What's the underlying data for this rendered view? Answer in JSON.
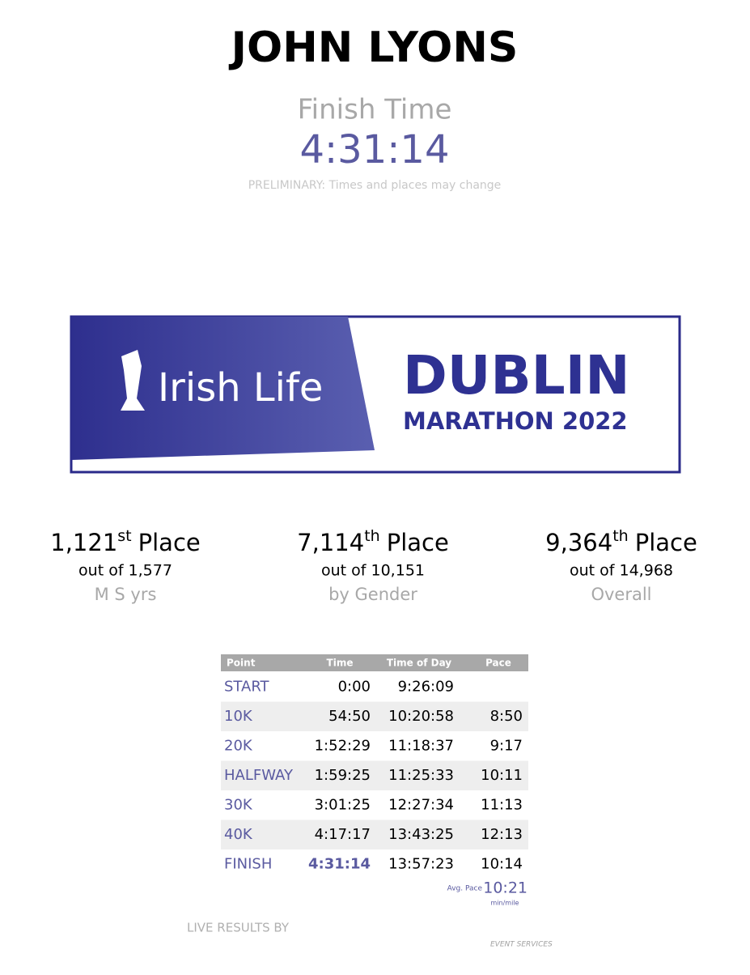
{
  "header": {
    "name": "JOHN LYONS",
    "finish_label": "Finish Time",
    "finish_time": "4:31:14",
    "note": "PRELIMINARY: Times and places may change"
  },
  "logo": {
    "sponsor": "Irish Life",
    "event": "DUBLIN",
    "subtitle": "MARATHON 2022"
  },
  "places": [
    {
      "rank": "1,121",
      "suffix": "st",
      "label": "Place",
      "out_of": "out of 1,577",
      "category": "M S yrs"
    },
    {
      "rank": "7,114",
      "suffix": "th",
      "label": "Place",
      "out_of": "out of 10,151",
      "category": "by Gender"
    },
    {
      "rank": "9,364",
      "suffix": "th",
      "label": "Place",
      "out_of": "out of 14,968",
      "category": "Overall"
    }
  ],
  "table": {
    "columns": [
      "Point",
      "Time",
      "Time of Day",
      "Pace"
    ],
    "rows": [
      [
        "START",
        "0:00",
        "9:26:09",
        ""
      ],
      [
        "10K",
        "54:50",
        "10:20:58",
        "8:50"
      ],
      [
        "20K",
        "1:52:29",
        "11:18:37",
        "9:17"
      ],
      [
        "HALFWAY",
        "1:59:25",
        "11:25:33",
        "10:11"
      ],
      [
        "30K",
        "3:01:25",
        "12:27:34",
        "11:13"
      ],
      [
        "40K",
        "4:17:17",
        "13:43:25",
        "12:13"
      ],
      [
        "FINISH",
        "4:31:14",
        "13:57:23",
        "10:14"
      ]
    ]
  },
  "avg_pace": {
    "label": "Avg. Pace",
    "value": "10:21",
    "unit": "min/mile"
  },
  "footer": {
    "results_by": "LIVE RESULTS BY",
    "services": "EVENT SERVICES"
  }
}
